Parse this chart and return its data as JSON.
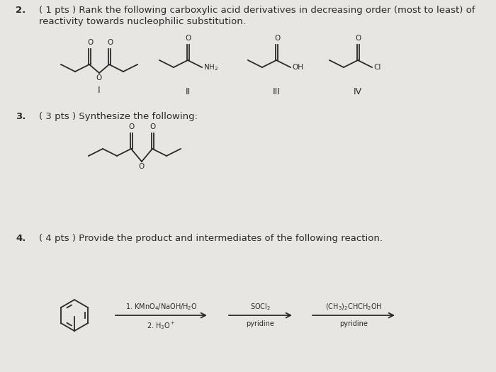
{
  "bg_color": "#c8bfb0",
  "paper_color": "#e8e6e2",
  "line_color": "#2a2a2a",
  "text_color": "#1a1a1a",
  "q2_num": "2.",
  "q2_text_line1": "( 1 pts ) Rank the following carboxylic acid derivatives in decreasing order (most to least) of",
  "q2_text_line2": "reactivity towards nucleophilic substitution.",
  "q3_num": "3.",
  "q3_text": "( 3 pts ) Synthesize the following:",
  "q4_num": "4.",
  "q4_text": "( 4 pts ) Provide the product and intermediates of the following reaction.",
  "label_I": "I",
  "label_II": "II",
  "label_III": "III",
  "label_IV": "IV",
  "font_size_main": 9.5,
  "font_size_label": 9,
  "font_size_chem": 7.5,
  "lw": 1.3,
  "seg": 20
}
